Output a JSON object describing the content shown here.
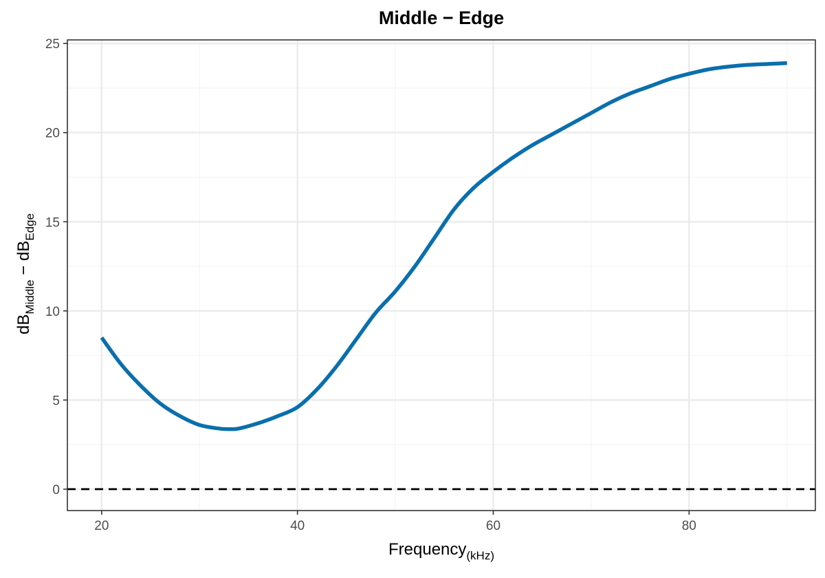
{
  "chart_data": {
    "type": "line",
    "title": "Middle − Edge",
    "xlabel": "Frequency",
    "xlabel_subscript": "(kHz)",
    "ylabel_parts": {
      "main1": "dB",
      "sub1": "Middle",
      "mid": " − dB",
      "sub2": "Edge"
    },
    "xlim": [
      16.5,
      92.9
    ],
    "ylim": [
      -1.2,
      25.2
    ],
    "x_ticks": [
      20,
      40,
      60,
      80
    ],
    "x_minor_ticks": [
      30,
      50,
      70,
      90
    ],
    "y_ticks": [
      0,
      5,
      10,
      15,
      20,
      25
    ],
    "y_minor_ticks": [
      2.5,
      7.5,
      12.5,
      17.5,
      22.5
    ],
    "grid": true,
    "reference_line": {
      "y": 0,
      "style": "dashed",
      "color": "#000000"
    },
    "series": [
      {
        "color": "#0a6fad",
        "x": [
          20,
          22,
          24,
          26,
          28,
          30,
          32,
          33,
          34,
          36,
          38,
          40,
          42,
          44,
          46,
          48,
          50,
          52,
          54,
          56,
          58,
          60,
          62,
          64,
          66,
          68,
          70,
          72,
          74,
          76,
          78,
          80,
          82,
          84,
          86,
          88,
          90
        ],
        "y": [
          8.5,
          7.0,
          5.8,
          4.8,
          4.1,
          3.6,
          3.4,
          3.37,
          3.4,
          3.7,
          4.1,
          4.6,
          5.6,
          6.9,
          8.4,
          9.9,
          11.1,
          12.5,
          14.1,
          15.7,
          16.9,
          17.8,
          18.6,
          19.3,
          19.9,
          20.5,
          21.1,
          21.7,
          22.2,
          22.6,
          23.0,
          23.3,
          23.55,
          23.7,
          23.8,
          23.85,
          23.9
        ]
      }
    ]
  }
}
